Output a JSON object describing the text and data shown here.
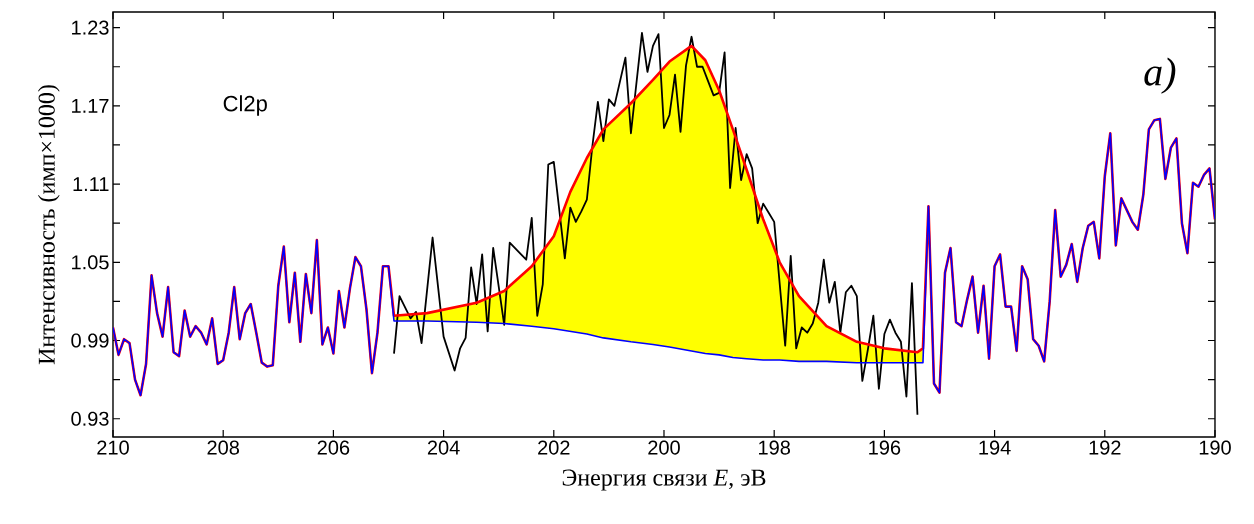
{
  "chart_data": {
    "type": "line",
    "xlabel": "Энергия связи *E*, эВ",
    "ylabel": "Интенсивность (имп×1000)",
    "annotations": [
      "Cl2p",
      "a)"
    ],
    "xlim": [
      210,
      190
    ],
    "xticks": [
      210,
      208,
      206,
      204,
      202,
      200,
      198,
      196,
      194,
      192,
      190
    ],
    "ylim": [
      0.916,
      1.242
    ],
    "yticks": [
      0.93,
      {
        "value": 0.96,
        "label": null
      },
      0.99,
      {
        "value": 1.02,
        "label": null
      },
      1.05,
      {
        "value": 1.08,
        "label": null
      },
      1.11,
      {
        "value": 1.14,
        "label": null
      },
      1.17,
      {
        "value": 1.2,
        "label": null
      },
      1.23
    ],
    "series": [
      {
        "type": "area",
        "color": "#ffff00",
        "x": [
          204.9,
          204.3,
          203.4,
          202.9,
          202.4,
          202.0,
          201.7,
          201.4,
          201.1,
          200.6,
          200.2,
          199.9,
          199.5,
          199.25,
          199.0,
          198.75,
          198.5,
          198.2,
          197.9,
          197.55,
          197.05,
          196.5,
          196.0,
          195.4,
          195.3
        ],
        "values": [
          1.009,
          1.011,
          1.019,
          1.028,
          1.047,
          1.07,
          1.104,
          1.13,
          1.152,
          1.172,
          1.19,
          1.204,
          1.216,
          1.205,
          1.182,
          1.152,
          1.121,
          1.083,
          1.05,
          1.024,
          1.001,
          0.989,
          0.984,
          0.981,
          0.984
        ]
      },
      {
        "color": "#000000",
        "x": [
          204.9,
          204.8,
          204.6,
          204.5,
          204.4,
          204.2,
          204.0,
          203.8,
          203.7,
          203.6,
          203.5,
          203.4,
          203.3,
          203.2,
          203.1,
          202.9,
          202.8,
          202.5,
          202.4,
          202.3,
          202.2,
          202.1,
          202.0,
          201.8,
          201.7,
          201.6,
          201.5,
          201.4,
          201.3,
          201.2,
          201.1,
          201.0,
          200.9,
          200.7,
          200.6,
          200.4,
          200.3,
          200.2,
          200.1,
          200.0,
          199.9,
          199.8,
          199.7,
          199.6,
          199.5,
          199.4,
          199.3,
          199.2,
          199.1,
          199.0,
          198.9,
          198.8,
          198.7,
          198.6,
          198.5,
          198.4,
          198.3,
          198.2,
          198.1,
          198.0,
          197.8,
          197.7,
          197.6,
          197.5,
          197.4,
          197.3,
          197.2,
          197.1,
          197.0,
          196.9,
          196.8,
          196.7,
          196.6,
          196.5,
          196.4,
          196.3,
          196.2,
          196.1,
          196.0,
          195.9,
          195.8,
          195.7,
          195.6,
          195.5,
          195.4
        ],
        "values": [
          0.98,
          1.024,
          1.007,
          1.012,
          0.988,
          1.069,
          0.993,
          0.967,
          0.984,
          0.992,
          1.046,
          1.018,
          1.056,
          0.997,
          1.061,
          1.002,
          1.065,
          1.052,
          1.084,
          1.009,
          1.033,
          1.125,
          1.127,
          1.053,
          1.092,
          1.081,
          1.089,
          1.098,
          1.139,
          1.173,
          1.143,
          1.175,
          1.17,
          1.207,
          1.149,
          1.226,
          1.196,
          1.216,
          1.225,
          1.153,
          1.163,
          1.194,
          1.15,
          1.201,
          1.223,
          1.2,
          1.2,
          1.189,
          1.178,
          1.18,
          1.211,
          1.107,
          1.153,
          1.113,
          1.133,
          1.122,
          1.08,
          1.095,
          1.088,
          1.081,
          0.986,
          1.055,
          0.984,
          1.0,
          0.996,
          1.003,
          1.019,
          1.052,
          1.019,
          1.035,
          0.996,
          1.027,
          1.032,
          1.024,
          0.959,
          0.983,
          1.009,
          0.953,
          0.995,
          1.006,
          0.996,
          0.989,
          0.947,
          1.034,
          0.933
        ]
      },
      {
        "color": "#ff0000",
        "x": [
          210.0,
          209.9,
          209.8,
          209.7,
          209.6,
          209.5,
          209.4,
          209.3,
          209.2,
          209.1,
          209.0,
          208.9,
          208.8,
          208.7,
          208.6,
          208.5,
          208.4,
          208.3,
          208.2,
          208.1,
          208.0,
          207.9,
          207.8,
          207.7,
          207.6,
          207.5,
          207.4,
          207.3,
          207.2,
          207.1,
          207.0,
          206.9,
          206.8,
          206.7,
          206.6,
          206.5,
          206.4,
          206.3,
          206.2,
          206.1,
          206.0,
          205.9,
          205.8,
          205.7,
          205.6,
          205.5,
          205.4,
          205.3,
          205.2,
          205.1,
          205.0,
          204.9,
          204.3,
          203.4,
          202.9,
          202.4,
          202.0,
          201.7,
          201.4,
          201.1,
          200.6,
          200.2,
          199.9,
          199.5,
          199.25,
          199.0,
          198.75,
          198.5,
          198.2,
          197.9,
          197.55,
          197.05,
          196.5,
          196.0,
          195.4,
          195.3,
          195.2,
          195.1,
          195.0,
          194.9,
          194.8,
          194.7,
          194.6,
          194.5,
          194.4,
          194.3,
          194.2,
          194.1,
          194.0,
          193.9,
          193.8,
          193.7,
          193.6,
          193.5,
          193.4,
          193.3,
          193.2,
          193.1,
          193.0,
          192.9,
          192.8,
          192.7,
          192.6,
          192.5,
          192.4,
          192.3,
          192.2,
          192.1,
          192.0,
          191.9,
          191.8,
          191.7,
          191.6,
          191.5,
          191.4,
          191.3,
          191.2,
          191.1,
          191.0,
          190.9,
          190.8,
          190.7,
          190.6,
          190.5,
          190.4,
          190.3,
          190.2,
          190.1,
          190.0
        ],
        "values": [
          1.0,
          0.979,
          0.991,
          0.988,
          0.96,
          0.948,
          0.972,
          1.04,
          1.011,
          0.993,
          1.031,
          0.981,
          0.978,
          1.013,
          0.993,
          1.001,
          0.996,
          0.987,
          1.007,
          0.972,
          0.975,
          0.996,
          1.031,
          0.991,
          1.011,
          1.018,
          0.996,
          0.973,
          0.97,
          0.971,
          1.032,
          1.062,
          1.004,
          1.042,
          0.989,
          1.041,
          1.011,
          1.067,
          0.987,
          1.0,
          0.98,
          1.028,
          1.0,
          1.03,
          1.054,
          1.047,
          1.014,
          0.965,
          0.996,
          1.047,
          1.047,
          1.009,
          1.011,
          1.019,
          1.028,
          1.047,
          1.07,
          1.104,
          1.13,
          1.152,
          1.172,
          1.19,
          1.204,
          1.216,
          1.205,
          1.182,
          1.152,
          1.121,
          1.083,
          1.05,
          1.024,
          1.001,
          0.989,
          0.984,
          0.981,
          0.984,
          1.093,
          0.957,
          0.95,
          1.042,
          1.061,
          1.004,
          1.001,
          1.021,
          1.039,
          0.996,
          1.032,
          0.976,
          1.047,
          1.056,
          1.016,
          1.016,
          0.982,
          1.047,
          1.037,
          0.991,
          0.986,
          0.974,
          1.02,
          1.09,
          1.039,
          1.048,
          1.064,
          1.035,
          1.061,
          1.078,
          1.081,
          1.053,
          1.116,
          1.149,
          1.063,
          1.099,
          1.09,
          1.081,
          1.075,
          1.102,
          1.152,
          1.159,
          1.16,
          1.114,
          1.138,
          1.145,
          1.08,
          1.057,
          1.111,
          1.108,
          1.117,
          1.122,
          1.083
        ]
      },
      {
        "color": "#0000ff",
        "x": [
          210.0,
          209.9,
          209.8,
          209.7,
          209.6,
          209.5,
          209.4,
          209.3,
          209.2,
          209.1,
          209.0,
          208.9,
          208.8,
          208.7,
          208.6,
          208.5,
          208.4,
          208.3,
          208.2,
          208.1,
          208.0,
          207.9,
          207.8,
          207.7,
          207.6,
          207.5,
          207.4,
          207.3,
          207.2,
          207.1,
          207.0,
          206.9,
          206.8,
          206.7,
          206.6,
          206.5,
          206.4,
          206.3,
          206.2,
          206.1,
          206.0,
          205.9,
          205.8,
          205.7,
          205.6,
          205.5,
          205.4,
          205.3,
          205.2,
          205.1,
          205.0,
          204.9,
          204.3,
          203.4,
          202.9,
          202.4,
          202.0,
          201.7,
          201.4,
          201.1,
          200.6,
          200.2,
          199.9,
          199.5,
          199.25,
          199.0,
          198.75,
          198.5,
          198.2,
          197.9,
          197.55,
          197.05,
          196.5,
          196.0,
          195.4,
          195.3,
          195.2,
          195.1,
          195.0,
          194.9,
          194.8,
          194.7,
          194.6,
          194.5,
          194.4,
          194.3,
          194.2,
          194.1,
          194.0,
          193.9,
          193.8,
          193.7,
          193.6,
          193.5,
          193.4,
          193.3,
          193.2,
          193.1,
          193.0,
          192.9,
          192.8,
          192.7,
          192.6,
          192.5,
          192.4,
          192.3,
          192.2,
          192.1,
          192.0,
          191.9,
          191.8,
          191.7,
          191.6,
          191.5,
          191.4,
          191.3,
          191.2,
          191.1,
          191.0,
          190.9,
          190.8,
          190.7,
          190.6,
          190.5,
          190.4,
          190.3,
          190.2,
          190.1,
          190.0
        ],
        "values": [
          1.0,
          0.979,
          0.991,
          0.988,
          0.96,
          0.948,
          0.972,
          1.04,
          1.011,
          0.993,
          1.031,
          0.981,
          0.978,
          1.013,
          0.993,
          1.001,
          0.996,
          0.987,
          1.007,
          0.972,
          0.975,
          0.996,
          1.031,
          0.991,
          1.011,
          1.018,
          0.996,
          0.973,
          0.97,
          0.971,
          1.032,
          1.062,
          1.004,
          1.042,
          0.989,
          1.041,
          1.011,
          1.067,
          0.987,
          1.0,
          0.98,
          1.028,
          1.0,
          1.03,
          1.054,
          1.047,
          1.014,
          0.965,
          0.996,
          1.047,
          1.047,
          1.005,
          1.005,
          1.004,
          1.003,
          1.001,
          0.999,
          0.997,
          0.995,
          0.992,
          0.989,
          0.987,
          0.985,
          0.982,
          0.98,
          0.979,
          0.977,
          0.976,
          0.975,
          0.975,
          0.974,
          0.974,
          0.973,
          0.973,
          0.973,
          0.973,
          1.093,
          0.957,
          0.95,
          1.042,
          1.061,
          1.004,
          1.001,
          1.021,
          1.039,
          0.996,
          1.032,
          0.976,
          1.047,
          1.056,
          1.016,
          1.016,
          0.982,
          1.047,
          1.037,
          0.991,
          0.986,
          0.974,
          1.02,
          1.09,
          1.039,
          1.048,
          1.064,
          1.035,
          1.061,
          1.078,
          1.081,
          1.053,
          1.116,
          1.149,
          1.063,
          1.099,
          1.09,
          1.081,
          1.075,
          1.102,
          1.152,
          1.159,
          1.16,
          1.114,
          1.138,
          1.145,
          1.08,
          1.057,
          1.111,
          1.108,
          1.117,
          1.122,
          1.083
        ]
      }
    ]
  }
}
